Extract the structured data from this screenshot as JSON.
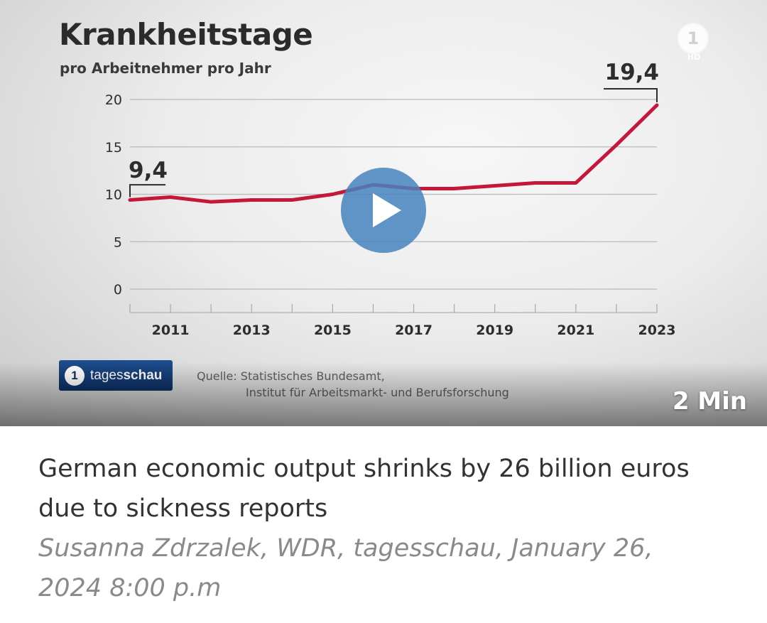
{
  "video": {
    "channel_badge": "1",
    "hd_badge": "HD",
    "duration": "2 Min",
    "source_line1": "Quelle: Statistisches Bundesamt,",
    "source_line2": "Institut für Arbeitsmarkt- und Berufsforschung",
    "brand_prefix": "tages",
    "brand_suffix": "schau",
    "play_icon": "play-icon"
  },
  "chart_data": {
    "type": "line",
    "title": "Krankheitstage",
    "subtitle": "pro Arbeitnehmer pro Jahr",
    "x": [
      2010,
      2011,
      2012,
      2013,
      2014,
      2015,
      2016,
      2017,
      2018,
      2019,
      2020,
      2021,
      2022,
      2023
    ],
    "series": [
      {
        "values": [
          9.4,
          9.7,
          9.2,
          9.4,
          9.4,
          10.0,
          11.0,
          10.6,
          10.6,
          10.9,
          11.2,
          11.2,
          15.2,
          19.4
        ],
        "color": "#c4173a"
      }
    ],
    "ylim": [
      0,
      20
    ],
    "yticks": [
      0,
      5,
      10,
      15,
      20
    ],
    "xticks": [
      2011,
      2013,
      2015,
      2017,
      2019,
      2021,
      2023
    ],
    "grid": true,
    "annotations": [
      {
        "label": "9,4",
        "x": 2010
      },
      {
        "label": "19,4",
        "x": 2023
      }
    ]
  },
  "article": {
    "headline": "German economic output shrinks by 26 billion euros due to sickness reports",
    "meta": "Susanna Zdrzalek, WDR, tagesschau, January 26, 2024 8:00 p.m"
  }
}
